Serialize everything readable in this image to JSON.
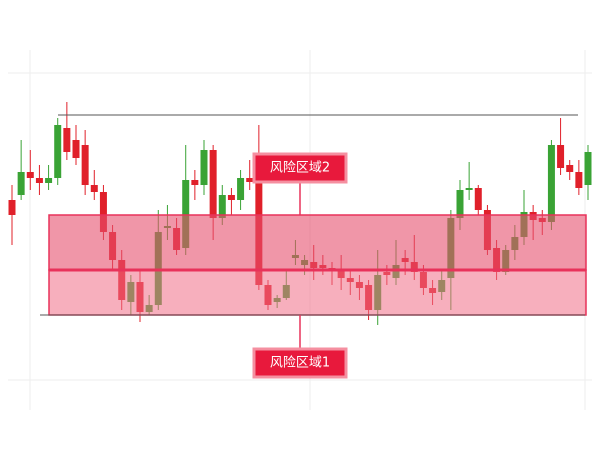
{
  "chart_data": {
    "type": "candlestick",
    "ylim": [
      0,
      360
    ],
    "up_color": "#3aa335",
    "down_color": "#e0202a",
    "open": [
      210,
      215,
      238,
      232,
      227,
      232,
      282,
      270,
      265,
      225,
      218,
      178,
      150,
      108,
      128,
      98,
      105,
      182,
      182,
      162,
      230,
      225,
      260,
      192,
      215,
      210,
      232,
      240,
      125,
      108,
      112,
      152,
      145,
      148,
      145,
      142,
      140,
      132,
      128,
      125,
      100,
      138,
      132,
      152,
      148,
      138,
      122,
      118,
      132,
      192,
      220,
      222,
      200,
      162,
      138,
      160,
      173,
      198,
      192,
      188,
      265,
      245,
      238,
      225
    ],
    "high": [
      225,
      270,
      260,
      245,
      245,
      292,
      308,
      285,
      280,
      240,
      225,
      185,
      160,
      135,
      140,
      115,
      200,
      205,
      192,
      265,
      240,
      270,
      265,
      225,
      222,
      240,
      250,
      285,
      130,
      115,
      140,
      170,
      155,
      165,
      155,
      148,
      155,
      140,
      135,
      130,
      160,
      145,
      170,
      160,
      175,
      145,
      130,
      140,
      200,
      230,
      248,
      225,
      205,
      170,
      165,
      185,
      220,
      205,
      200,
      270,
      292,
      250,
      250,
      265
    ],
    "low": [
      165,
      210,
      220,
      215,
      220,
      225,
      250,
      245,
      215,
      210,
      170,
      140,
      100,
      95,
      88,
      95,
      100,
      170,
      155,
      155,
      210,
      215,
      170,
      185,
      195,
      200,
      220,
      120,
      100,
      102,
      110,
      145,
      135,
      130,
      135,
      125,
      120,
      115,
      110,
      90,
      85,
      125,
      125,
      135,
      130,
      115,
      105,
      110,
      100,
      180,
      210,
      195,
      155,
      130,
      135,
      150,
      165,
      170,
      175,
      180,
      235,
      230,
      215,
      210
    ],
    "close": [
      195,
      238,
      232,
      227,
      232,
      285,
      258,
      252,
      225,
      218,
      178,
      150,
      110,
      128,
      98,
      105,
      178,
      184,
      160,
      230,
      225,
      260,
      192,
      215,
      210,
      232,
      228,
      125,
      105,
      112,
      125,
      155,
      150,
      142,
      142,
      140,
      132,
      128,
      122,
      100,
      135,
      135,
      145,
      148,
      138,
      122,
      117,
      130,
      192,
      220,
      222,
      200,
      160,
      138,
      160,
      173,
      198,
      190,
      188,
      265,
      242,
      238,
      222,
      258
    ],
    "hlines": [
      295,
      95
    ],
    "bands": [
      {
        "label": "风险区域1",
        "range": [
          95,
          140
        ],
        "color": "rgba(240,110,135,0.55)"
      },
      {
        "label": "风险区域2",
        "range": [
          140,
          195
        ],
        "color": "rgba(230,80,110,0.6)"
      }
    ]
  }
}
